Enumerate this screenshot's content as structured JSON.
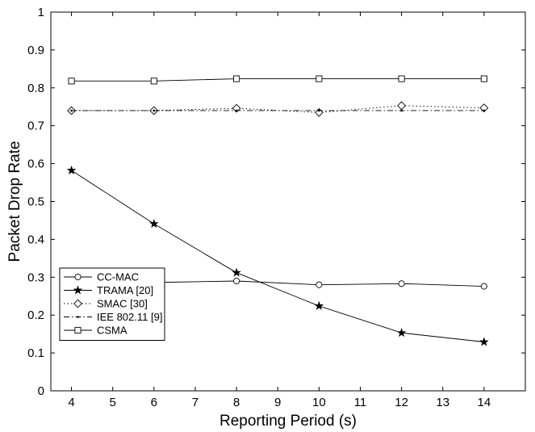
{
  "chart_data": {
    "type": "line",
    "title": "",
    "xlabel": "Reporting Period (s)",
    "ylabel": "Packet Drop Rate",
    "xlim": [
      3.5,
      15
    ],
    "ylim": [
      0,
      1
    ],
    "xticks": [
      4,
      5,
      6,
      7,
      8,
      9,
      10,
      11,
      12,
      13,
      14
    ],
    "yticks": [
      0,
      0.1,
      0.2,
      0.3,
      0.4,
      0.5,
      0.6,
      0.7,
      0.8,
      0.9,
      1
    ],
    "x": [
      4,
      6,
      8,
      10,
      12,
      14
    ],
    "legend_position": "bottom-left",
    "grid": false,
    "series": [
      {
        "name": "CC-MAC",
        "marker": "circle",
        "dash": "solid",
        "values": [
          0.298,
          0.286,
          0.29,
          0.28,
          0.283,
          0.276
        ]
      },
      {
        "name": "TRAMA [20]",
        "marker": "star",
        "dash": "solid",
        "values": [
          0.582,
          0.441,
          0.312,
          0.224,
          0.153,
          0.129
        ]
      },
      {
        "name": "SMAC [30]",
        "marker": "diamond",
        "dash": "dotted",
        "values": [
          0.74,
          0.74,
          0.746,
          0.735,
          0.753,
          0.747
        ]
      },
      {
        "name": "IEE 802.11 [9]",
        "marker": "dot",
        "dash": "dashdot",
        "values": [
          0.74,
          0.74,
          0.74,
          0.74,
          0.74,
          0.74
        ]
      },
      {
        "name": "CSMA",
        "marker": "square",
        "dash": "solid",
        "values": [
          0.818,
          0.818,
          0.824,
          0.824,
          0.824,
          0.824
        ]
      }
    ]
  }
}
